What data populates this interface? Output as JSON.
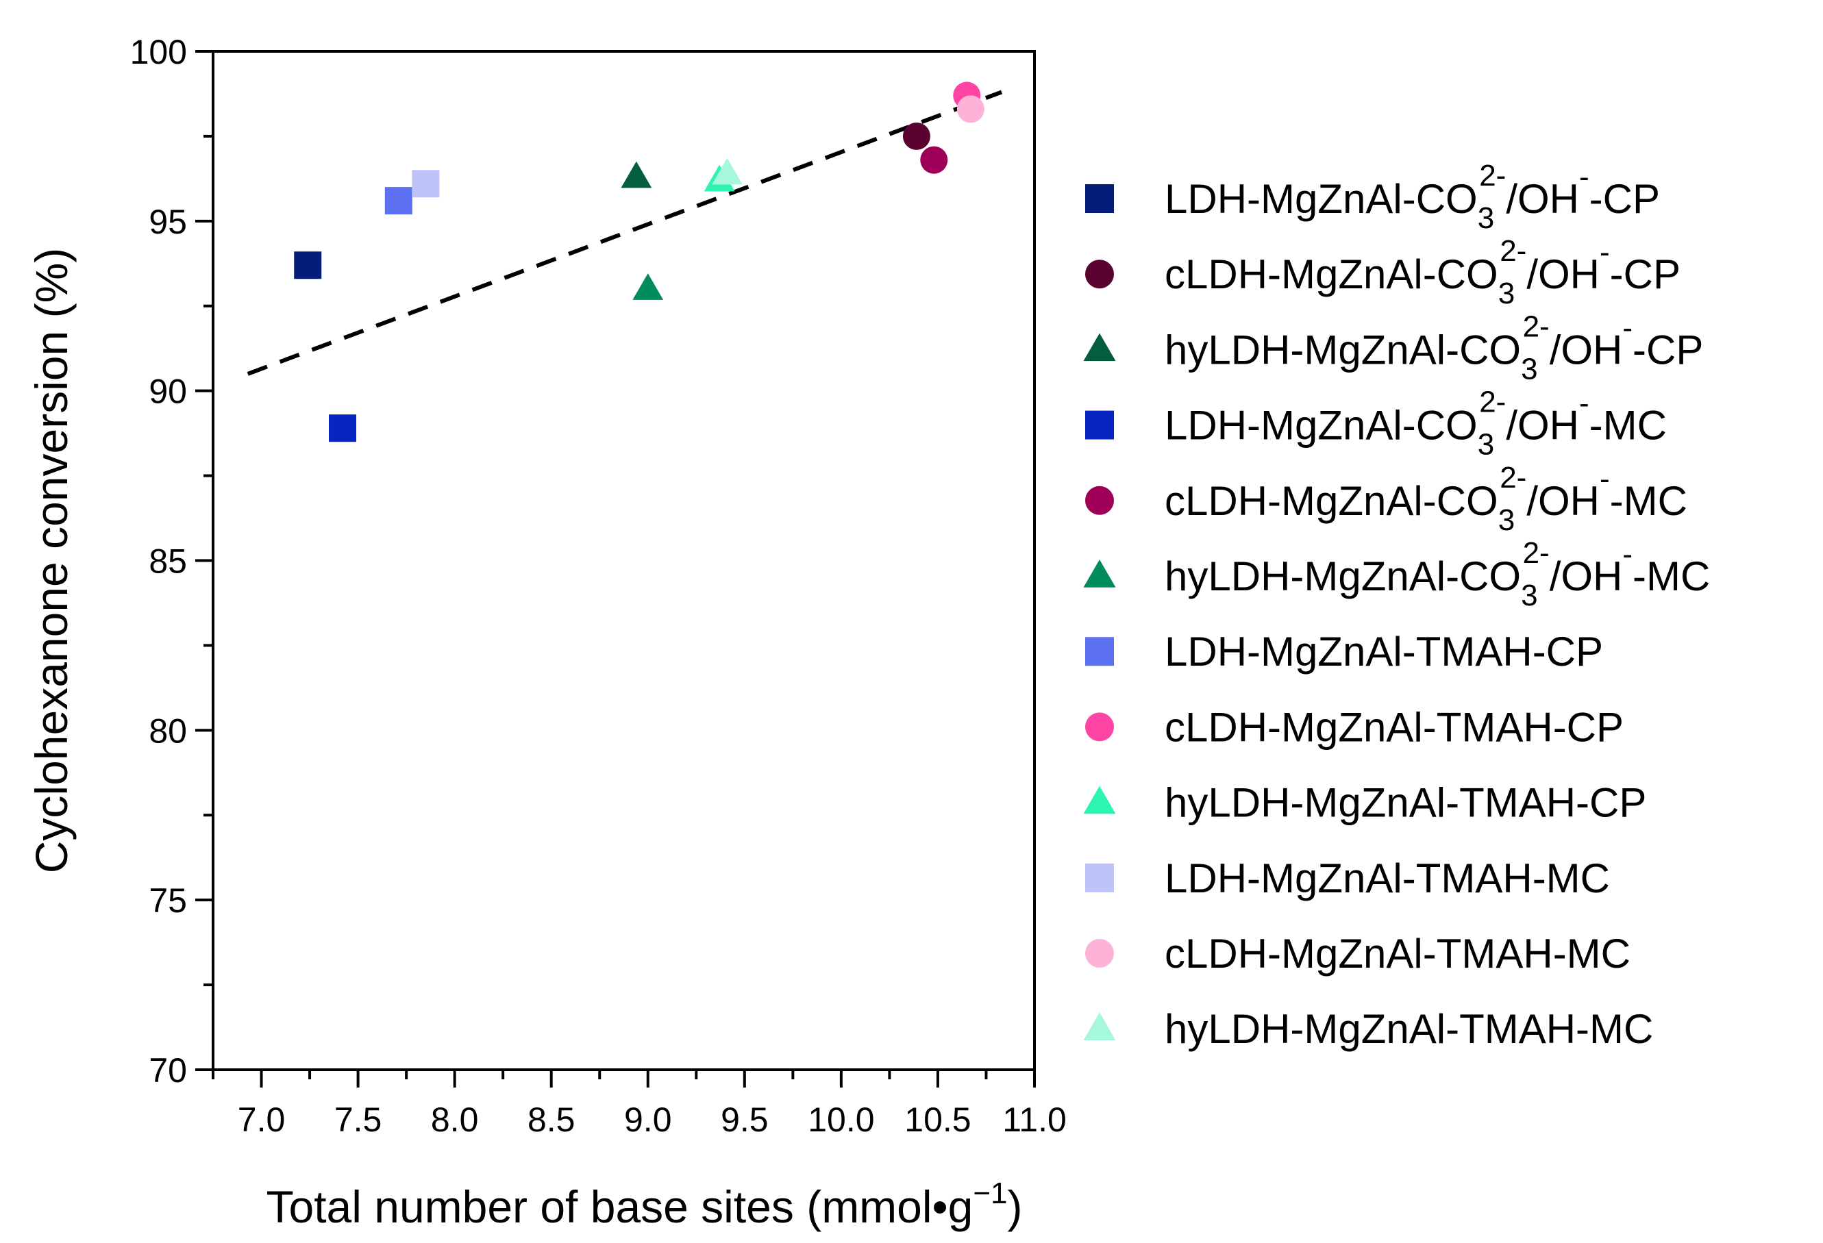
{
  "chart_data": {
    "type": "scatter",
    "title": "",
    "xlabel": "Total number of base sites (mmol•g−1)",
    "xlabel_main": "Total number of base sites (mmol•g",
    "xlabel_sup": "−1",
    "xlabel_close": ")",
    "ylabel": "Cyclohexanone conversion (%)",
    "xlim": [
      6.75,
      11.0
    ],
    "ylim": [
      70,
      100
    ],
    "x_ticks": [
      7.0,
      7.5,
      8.0,
      8.5,
      9.0,
      9.5,
      10.0,
      10.5,
      11.0
    ],
    "x_tick_labels": [
      "7.0",
      "7.5",
      "8.0",
      "8.5",
      "9.0",
      "9.5",
      "10.0",
      "10.5",
      "11.0"
    ],
    "y_ticks": [
      70,
      75,
      80,
      85,
      90,
      95,
      100
    ],
    "y_tick_labels": [
      "70",
      "75",
      "80",
      "85",
      "90",
      "95",
      "100"
    ],
    "legend_position": "right",
    "trendline": {
      "style": "dashed",
      "color": "#000000",
      "x": [
        6.93,
        10.83
      ],
      "y": [
        90.5,
        98.8
      ]
    },
    "series": [
      {
        "name": "LDH-MgZnAl-CO32-/OH--CP",
        "label_parts": [
          "LDH-MgZnAl-CO",
          "3",
          "2-",
          "/OH",
          "-",
          "-CP"
        ],
        "marker": "square",
        "color": "#041C7A",
        "x": [
          7.24
        ],
        "y": [
          93.7
        ]
      },
      {
        "name": "cLDH-MgZnAl-CO32-/OH--CP",
        "label_parts": [
          "cLDH-MgZnAl-CO",
          "3",
          "2-",
          "/OH",
          "-",
          "-CP"
        ],
        "marker": "circle",
        "color": "#5A0230",
        "x": [
          10.39
        ],
        "y": [
          97.5
        ]
      },
      {
        "name": "hyLDH-MgZnAl-CO32-/OH--CP",
        "label_parts": [
          "hyLDH-MgZnAl-CO",
          "3",
          "2-",
          "/OH",
          "-",
          "-CP"
        ],
        "marker": "triangle",
        "color": "#035E40",
        "x": [
          8.94
        ],
        "y": [
          96.3
        ]
      },
      {
        "name": "LDH-MgZnAl-CO32-/OH--MC",
        "label_parts": [
          "LDH-MgZnAl-CO",
          "3",
          "2-",
          "/OH",
          "-",
          "-MC"
        ],
        "marker": "square",
        "color": "#0825C2",
        "x": [
          7.42
        ],
        "y": [
          88.9
        ]
      },
      {
        "name": "cLDH-MgZnAl-CO32-/OH--MC",
        "label_parts": [
          "cLDH-MgZnAl-CO",
          "3",
          "2-",
          "/OH",
          "-",
          "-MC"
        ],
        "marker": "circle",
        "color": "#9E0058",
        "x": [
          10.48
        ],
        "y": [
          96.8
        ]
      },
      {
        "name": "hyLDH-MgZnAl-CO32-/OH--MC",
        "label_parts": [
          "hyLDH-MgZnAl-CO",
          "3",
          "2-",
          "/OH",
          "-",
          "-MC"
        ],
        "marker": "triangle",
        "color": "#008C5C",
        "x": [
          9.0
        ],
        "y": [
          93.0
        ]
      },
      {
        "name": "LDH-MgZnAl-TMAH-CP",
        "label_parts": [
          "LDH-MgZnAl-TMAH-CP"
        ],
        "marker": "square",
        "color": "#5C70F2",
        "x": [
          7.71
        ],
        "y": [
          95.6
        ]
      },
      {
        "name": "cLDH-MgZnAl-TMAH-CP",
        "label_parts": [
          "cLDH-MgZnAl-TMAH-CP"
        ],
        "marker": "circle",
        "color": "#FF45A4",
        "x": [
          10.65
        ],
        "y": [
          98.7
        ]
      },
      {
        "name": "hyLDH-MgZnAl-TMAH-CP",
        "label_parts": [
          "hyLDH-MgZnAl-TMAH-CP"
        ],
        "marker": "triangle",
        "color": "#2CF5B0",
        "x": [
          9.37
        ],
        "y": [
          96.2
        ]
      },
      {
        "name": "LDH-MgZnAl-TMAH-MC",
        "label_parts": [
          "LDH-MgZnAl-TMAH-MC"
        ],
        "marker": "square",
        "color": "#BEC4FA",
        "x": [
          7.85
        ],
        "y": [
          96.1
        ]
      },
      {
        "name": "cLDH-MgZnAl-TMAH-MC",
        "label_parts": [
          "cLDH-MgZnAl-TMAH-MC"
        ],
        "marker": "circle",
        "color": "#FFB2D8",
        "x": [
          10.67
        ],
        "y": [
          98.3
        ]
      },
      {
        "name": "hyLDH-MgZnAl-TMAH-MC",
        "label_parts": [
          "hyLDH-MgZnAl-TMAH-MC"
        ],
        "marker": "triangle",
        "color": "#A6F8DB",
        "x": [
          9.41
        ],
        "y": [
          96.4
        ]
      }
    ]
  }
}
